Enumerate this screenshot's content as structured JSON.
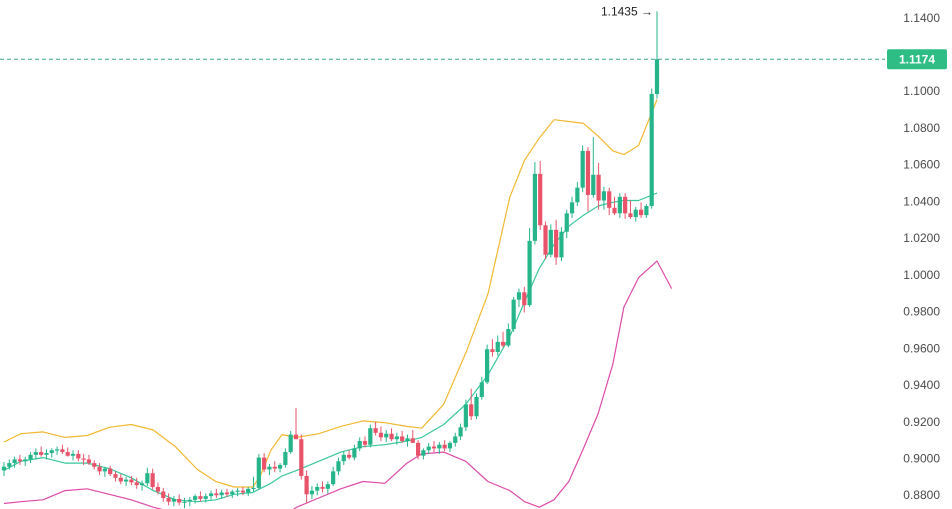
{
  "chart_data": {
    "type": "candlestick",
    "title": "",
    "xlabel": "",
    "ylabel": "",
    "ylim": [
      0.8725,
      1.1475
    ],
    "y_ticks": [
      "1.1400",
      "1.1200",
      "1.1000",
      "1.0800",
      "1.0600",
      "1.0400",
      "1.0200",
      "1.0000",
      "0.9800",
      "0.9600",
      "0.9400",
      "0.9200",
      "0.9000",
      "0.8800"
    ],
    "last_price": {
      "value": 1.1174,
      "label": "1.1174",
      "color": "#2ebd85"
    },
    "peak": {
      "value": 1.1435,
      "label": "1.1435 →"
    },
    "grid": false,
    "colors": {
      "up": "#26b48a",
      "down": "#e8536a",
      "upper_band": "#f2b830",
      "middle_line": "#39c79a",
      "lower_line": "#dd4aa8",
      "price_line": "#3aa68a"
    },
    "candles": [
      [
        0.8935,
        0.898,
        0.8905,
        0.8955
      ],
      [
        0.8955,
        0.8995,
        0.894,
        0.8975
      ],
      [
        0.8975,
        0.901,
        0.895,
        0.8995
      ],
      [
        0.8995,
        0.902,
        0.8965,
        0.8985
      ],
      [
        0.8985,
        0.901,
        0.896,
        0.8995
      ],
      [
        0.8995,
        0.9035,
        0.8975,
        0.902
      ],
      [
        0.902,
        0.9055,
        0.8995,
        0.9035
      ],
      [
        0.9035,
        0.9065,
        0.901,
        0.902
      ],
      [
        0.902,
        0.905,
        0.8995,
        0.903
      ],
      [
        0.903,
        0.9055,
        0.9005,
        0.9045
      ],
      [
        0.9045,
        0.9065,
        0.902,
        0.905
      ],
      [
        0.905,
        0.9075,
        0.9025,
        0.9035
      ],
      [
        0.9035,
        0.906,
        0.901,
        0.9015
      ],
      [
        0.9015,
        0.9045,
        0.899,
        0.9025
      ],
      [
        0.9025,
        0.9045,
        0.8985,
        0.9
      ],
      [
        0.9,
        0.9025,
        0.8965,
        0.8995
      ],
      [
        0.8995,
        0.902,
        0.8965,
        0.8975
      ],
      [
        0.8975,
        0.899,
        0.894,
        0.8955
      ],
      [
        0.8955,
        0.8975,
        0.891,
        0.893
      ],
      [
        0.893,
        0.8955,
        0.89,
        0.8945
      ],
      [
        0.8945,
        0.896,
        0.8905,
        0.8915
      ],
      [
        0.8915,
        0.893,
        0.8875,
        0.8895
      ],
      [
        0.8895,
        0.8915,
        0.886,
        0.8875
      ],
      [
        0.8875,
        0.89,
        0.885,
        0.8885
      ],
      [
        0.8885,
        0.8905,
        0.8855,
        0.887
      ],
      [
        0.887,
        0.8895,
        0.8835,
        0.8855
      ],
      [
        0.8855,
        0.888,
        0.8825,
        0.8865
      ],
      [
        0.8865,
        0.895,
        0.885,
        0.892
      ],
      [
        0.892,
        0.8945,
        0.883,
        0.8845
      ],
      [
        0.8845,
        0.887,
        0.8805,
        0.882
      ],
      [
        0.882,
        0.884,
        0.8765,
        0.8785
      ],
      [
        0.8785,
        0.881,
        0.8745,
        0.8765
      ],
      [
        0.8765,
        0.8795,
        0.874,
        0.878
      ],
      [
        0.878,
        0.8805,
        0.8745,
        0.876
      ],
      [
        0.876,
        0.8785,
        0.873,
        0.8765
      ],
      [
        0.8765,
        0.879,
        0.874,
        0.8775
      ],
      [
        0.8775,
        0.8805,
        0.8755,
        0.8795
      ],
      [
        0.8795,
        0.882,
        0.8765,
        0.878
      ],
      [
        0.878,
        0.881,
        0.876,
        0.8795
      ],
      [
        0.8795,
        0.8825,
        0.8775,
        0.881
      ],
      [
        0.881,
        0.8835,
        0.8785,
        0.88
      ],
      [
        0.88,
        0.883,
        0.878,
        0.8815
      ],
      [
        0.8815,
        0.8835,
        0.879,
        0.8805
      ],
      [
        0.8805,
        0.883,
        0.8785,
        0.882
      ],
      [
        0.882,
        0.884,
        0.8795,
        0.8825
      ],
      [
        0.8825,
        0.8845,
        0.88,
        0.8815
      ],
      [
        0.8815,
        0.8845,
        0.8795,
        0.8835
      ],
      [
        0.8835,
        0.89,
        0.882,
        0.884
      ],
      [
        0.884,
        0.9025,
        0.883,
        0.9005
      ],
      [
        0.9005,
        0.903,
        0.8925,
        0.894
      ],
      [
        0.894,
        0.897,
        0.891,
        0.8955
      ],
      [
        0.8955,
        0.8985,
        0.8925,
        0.8945
      ],
      [
        0.8945,
        0.8975,
        0.8925,
        0.8965
      ],
      [
        0.8965,
        0.9055,
        0.895,
        0.9035
      ],
      [
        0.9035,
        0.915,
        0.9025,
        0.913
      ],
      [
        0.913,
        0.9275,
        0.911,
        0.9105
      ],
      [
        0.9105,
        0.913,
        0.8885,
        0.8905
      ],
      [
        0.8905,
        0.8935,
        0.8755,
        0.8805
      ],
      [
        0.8805,
        0.885,
        0.878,
        0.8825
      ],
      [
        0.8825,
        0.8865,
        0.88,
        0.8845
      ],
      [
        0.8845,
        0.8875,
        0.8815,
        0.8835
      ],
      [
        0.8835,
        0.8875,
        0.881,
        0.886
      ],
      [
        0.886,
        0.8955,
        0.885,
        0.893
      ],
      [
        0.893,
        0.9005,
        0.891,
        0.8985
      ],
      [
        0.8985,
        0.904,
        0.8965,
        0.902
      ],
      [
        0.902,
        0.9045,
        0.8995,
        0.9005
      ],
      [
        0.9005,
        0.9075,
        0.899,
        0.9055
      ],
      [
        0.9055,
        0.9115,
        0.904,
        0.9095
      ],
      [
        0.9095,
        0.912,
        0.906,
        0.9075
      ],
      [
        0.9075,
        0.9185,
        0.906,
        0.9165
      ],
      [
        0.9165,
        0.92,
        0.9125,
        0.914
      ],
      [
        0.914,
        0.9175,
        0.9095,
        0.9115
      ],
      [
        0.9115,
        0.9155,
        0.909,
        0.9135
      ],
      [
        0.9135,
        0.9165,
        0.9095,
        0.9105
      ],
      [
        0.9105,
        0.914,
        0.9075,
        0.912
      ],
      [
        0.912,
        0.915,
        0.9085,
        0.9095
      ],
      [
        0.9095,
        0.913,
        0.9065,
        0.911
      ],
      [
        0.911,
        0.9155,
        0.9085,
        0.9085
      ],
      [
        0.9085,
        0.91,
        0.8995,
        0.9015
      ],
      [
        0.9015,
        0.9055,
        0.8995,
        0.9045
      ],
      [
        0.9045,
        0.9085,
        0.9025,
        0.9065
      ],
      [
        0.9065,
        0.9095,
        0.9035,
        0.9055
      ],
      [
        0.9055,
        0.909,
        0.9025,
        0.9075
      ],
      [
        0.9075,
        0.91,
        0.904,
        0.9055
      ],
      [
        0.9055,
        0.9095,
        0.9035,
        0.9085
      ],
      [
        0.9085,
        0.914,
        0.9065,
        0.912
      ],
      [
        0.912,
        0.919,
        0.91,
        0.917
      ],
      [
        0.917,
        0.932,
        0.915,
        0.9295
      ],
      [
        0.9295,
        0.938,
        0.921,
        0.923
      ],
      [
        0.923,
        0.9355,
        0.9215,
        0.9335
      ],
      [
        0.9335,
        0.9445,
        0.932,
        0.9415
      ],
      [
        0.9415,
        0.962,
        0.9405,
        0.9595
      ],
      [
        0.9595,
        0.965,
        0.9555,
        0.958
      ],
      [
        0.958,
        0.967,
        0.956,
        0.9635
      ],
      [
        0.9635,
        0.969,
        0.9605,
        0.9615
      ],
      [
        0.9615,
        0.9735,
        0.9605,
        0.9705
      ],
      [
        0.9705,
        0.988,
        0.969,
        0.9865
      ],
      [
        0.9865,
        0.9925,
        0.9825,
        0.9905
      ],
      [
        0.9905,
        0.9935,
        0.9795,
        0.9835
      ],
      [
        0.9835,
        1.0255,
        0.9825,
        1.0185
      ],
      [
        1.0185,
        1.0615,
        1.0165,
        1.055
      ],
      [
        1.055,
        1.062,
        1.0245,
        1.027
      ],
      [
        1.027,
        1.029,
        1.0085,
        1.011
      ],
      [
        1.011,
        1.0275,
        1.0095,
        1.0245
      ],
      [
        1.0245,
        1.03,
        1.0055,
        1.0095
      ],
      [
        1.0095,
        1.026,
        1.0075,
        1.0235
      ],
      [
        1.0235,
        1.0355,
        1.02,
        1.0335
      ],
      [
        1.0335,
        1.0425,
        1.031,
        1.0395
      ],
      [
        1.0395,
        1.0505,
        1.0375,
        1.0475
      ],
      [
        1.0475,
        1.0705,
        1.045,
        1.0675
      ],
      [
        1.0675,
        1.0695,
        1.0345,
        1.0435
      ],
      [
        1.0435,
        1.075,
        1.042,
        1.0545
      ],
      [
        1.0545,
        1.061,
        1.0355,
        1.0405
      ],
      [
        1.0405,
        1.048,
        1.0355,
        1.0455
      ],
      [
        1.0455,
        1.0475,
        1.0325,
        1.0365
      ],
      [
        1.0365,
        1.0425,
        1.0325,
        1.0335
      ],
      [
        1.0335,
        1.0445,
        1.031,
        1.0425
      ],
      [
        1.0425,
        1.0445,
        1.0305,
        1.0335
      ],
      [
        1.0335,
        1.0405,
        1.0305,
        1.0315
      ],
      [
        1.0315,
        1.037,
        1.029,
        1.0355
      ],
      [
        1.0355,
        1.0395,
        1.031,
        1.0325
      ],
      [
        1.0325,
        1.0385,
        1.031,
        1.0375
      ],
      [
        1.0375,
        1.1015,
        1.036,
        1.0985
      ],
      [
        1.0985,
        1.1435,
        1.096,
        1.1174
      ]
    ],
    "upper_band": [
      [
        0.902,
        0.909
      ],
      [
        0.925,
        0.9135
      ],
      [
        0.955,
        0.9145
      ],
      [
        0.985,
        0.9115
      ],
      [
        1.015,
        0.9125
      ],
      [
        1.045,
        0.917
      ],
      [
        1.075,
        0.9185
      ],
      [
        1.105,
        0.9155
      ],
      [
        1.135,
        0.9065
      ],
      [
        1.165,
        0.894
      ],
      [
        1.19,
        0.8875
      ],
      [
        1.215,
        0.8845
      ],
      [
        1.24,
        0.8845
      ],
      [
        1.25,
        0.89
      ],
      [
        1.265,
        0.9045
      ],
      [
        1.28,
        0.913
      ],
      [
        1.3,
        0.9115
      ],
      [
        1.33,
        0.9135
      ],
      [
        1.36,
        0.9175
      ],
      [
        1.39,
        0.9205
      ],
      [
        1.42,
        0.9195
      ],
      [
        1.45,
        0.9175
      ],
      [
        1.47,
        0.9165
      ],
      [
        1.5,
        0.9295
      ],
      [
        1.53,
        0.9575
      ],
      [
        1.56,
        0.9895
      ],
      [
        1.59,
        1.0425
      ],
      [
        1.61,
        1.0625
      ],
      [
        1.63,
        1.0745
      ],
      [
        1.65,
        1.0845
      ],
      [
        1.67,
        1.0835
      ],
      [
        1.69,
        1.0825
      ],
      [
        1.71,
        1.0755
      ],
      [
        1.73,
        1.0675
      ],
      [
        1.745,
        1.0655
      ],
      [
        1.765,
        1.0705
      ],
      [
        1.79,
        1.0955
      ]
    ],
    "middle_line": [
      [
        0.902,
        0.8935
      ],
      [
        0.925,
        0.8985
      ],
      [
        0.955,
        0.9005
      ],
      [
        0.985,
        0.8975
      ],
      [
        1.015,
        0.8975
      ],
      [
        1.045,
        0.8945
      ],
      [
        1.075,
        0.8895
      ],
      [
        1.105,
        0.8825
      ],
      [
        1.135,
        0.8775
      ],
      [
        1.165,
        0.8765
      ],
      [
        1.19,
        0.8775
      ],
      [
        1.215,
        0.8805
      ],
      [
        1.24,
        0.8815
      ],
      [
        1.25,
        0.8835
      ],
      [
        1.265,
        0.8865
      ],
      [
        1.28,
        0.8905
      ],
      [
        1.3,
        0.8935
      ],
      [
        1.33,
        0.8985
      ],
      [
        1.36,
        0.9035
      ],
      [
        1.39,
        0.9065
      ],
      [
        1.42,
        0.9075
      ],
      [
        1.45,
        0.9095
      ],
      [
        1.47,
        0.9115
      ],
      [
        1.5,
        0.9185
      ],
      [
        1.53,
        0.9295
      ],
      [
        1.56,
        0.9455
      ],
      [
        1.59,
        0.9665
      ],
      [
        1.61,
        0.9855
      ],
      [
        1.63,
        1.0035
      ],
      [
        1.65,
        1.0165
      ],
      [
        1.67,
        1.0265
      ],
      [
        1.69,
        1.0325
      ],
      [
        1.71,
        1.0375
      ],
      [
        1.73,
        1.0395
      ],
      [
        1.745,
        1.0405
      ],
      [
        1.765,
        1.0405
      ],
      [
        1.79,
        1.0445
      ]
    ],
    "lower_line": [
      [
        0.902,
        0.8755
      ],
      [
        0.925,
        0.8765
      ],
      [
        0.955,
        0.8775
      ],
      [
        0.985,
        0.8825
      ],
      [
        1.015,
        0.8835
      ],
      [
        1.045,
        0.8805
      ],
      [
        1.075,
        0.8775
      ],
      [
        1.105,
        0.8735
      ],
      [
        1.135,
        0.8705
      ],
      [
        1.165,
        0.8695
      ],
      [
        1.19,
        0.8705
      ],
      [
        1.215,
        0.8715
      ],
      [
        1.24,
        0.8705
      ],
      [
        1.25,
        0.8685
      ],
      [
        1.265,
        0.8665
      ],
      [
        1.28,
        0.8685
      ],
      [
        1.3,
        0.8735
      ],
      [
        1.33,
        0.8785
      ],
      [
        1.36,
        0.8835
      ],
      [
        1.39,
        0.8875
      ],
      [
        1.42,
        0.8865
      ],
      [
        1.45,
        0.8975
      ],
      [
        1.47,
        0.9025
      ],
      [
        1.5,
        0.9035
      ],
      [
        1.53,
        0.8985
      ],
      [
        1.56,
        0.8875
      ],
      [
        1.59,
        0.8825
      ],
      [
        1.61,
        0.8765
      ],
      [
        1.63,
        0.8735
      ],
      [
        1.65,
        0.8775
      ],
      [
        1.67,
        0.8875
      ],
      [
        1.69,
        0.9055
      ],
      [
        1.71,
        0.9245
      ],
      [
        1.73,
        0.9515
      ],
      [
        1.745,
        0.9825
      ],
      [
        1.765,
        0.9985
      ],
      [
        1.79,
        1.0075
      ],
      [
        1.81,
        0.9925
      ]
    ]
  }
}
